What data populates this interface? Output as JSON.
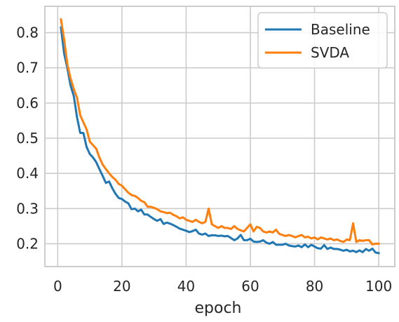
{
  "chart_data": {
    "type": "line",
    "xlabel": "epoch",
    "ylabel": "",
    "xlim": [
      -4,
      105
    ],
    "ylim": [
      0.135,
      0.875
    ],
    "xticks": [
      0,
      20,
      40,
      60,
      80,
      100
    ],
    "yticks": [
      0.2,
      0.3,
      0.4,
      0.5,
      0.6,
      0.7,
      0.8
    ],
    "xtick_labels": [
      "0",
      "20",
      "40",
      "60",
      "80",
      "100"
    ],
    "ytick_labels": [
      "0.2",
      "0.3",
      "0.4",
      "0.5",
      "0.6",
      "0.7",
      "0.8"
    ],
    "grid": true,
    "legend_position": "top-right",
    "series": [
      {
        "name": "Baseline",
        "color": "#1f77b4",
        "x": [
          1,
          2,
          3,
          4,
          5,
          6,
          7,
          8,
          9,
          10,
          11,
          12,
          13,
          14,
          15,
          16,
          17,
          18,
          19,
          20,
          21,
          22,
          23,
          24,
          25,
          26,
          27,
          28,
          29,
          30,
          31,
          32,
          33,
          34,
          35,
          36,
          37,
          38,
          39,
          40,
          41,
          42,
          43,
          44,
          45,
          46,
          47,
          48,
          49,
          50,
          51,
          52,
          53,
          54,
          55,
          56,
          57,
          58,
          59,
          60,
          61,
          62,
          63,
          64,
          65,
          66,
          67,
          68,
          69,
          70,
          71,
          72,
          73,
          74,
          75,
          76,
          77,
          78,
          79,
          80,
          81,
          82,
          83,
          84,
          85,
          86,
          87,
          88,
          89,
          90,
          91,
          92,
          93,
          94,
          95,
          96,
          97,
          98,
          99,
          100
        ],
        "values": [
          0.815,
          0.74,
          0.7,
          0.65,
          0.62,
          0.56,
          0.515,
          0.515,
          0.475,
          0.455,
          0.445,
          0.432,
          0.412,
          0.393,
          0.373,
          0.377,
          0.358,
          0.342,
          0.33,
          0.327,
          0.32,
          0.315,
          0.298,
          0.3,
          0.292,
          0.297,
          0.283,
          0.283,
          0.276,
          0.27,
          0.265,
          0.27,
          0.256,
          0.26,
          0.257,
          0.253,
          0.248,
          0.243,
          0.24,
          0.237,
          0.233,
          0.236,
          0.24,
          0.229,
          0.226,
          0.229,
          0.222,
          0.224,
          0.224,
          0.222,
          0.223,
          0.221,
          0.222,
          0.216,
          0.21,
          0.215,
          0.225,
          0.21,
          0.21,
          0.214,
          0.206,
          0.205,
          0.206,
          0.21,
          0.203,
          0.2,
          0.205,
          0.197,
          0.197,
          0.197,
          0.2,
          0.195,
          0.193,
          0.192,
          0.195,
          0.19,
          0.198,
          0.19,
          0.197,
          0.192,
          0.187,
          0.186,
          0.196,
          0.185,
          0.189,
          0.185,
          0.185,
          0.183,
          0.18,
          0.183,
          0.178,
          0.18,
          0.176,
          0.181,
          0.176,
          0.185,
          0.18,
          0.186,
          0.175,
          0.173
        ]
      },
      {
        "name": "SVDA",
        "color": "#ff7f0e",
        "x": [
          1,
          2,
          3,
          4,
          5,
          6,
          7,
          8,
          9,
          10,
          11,
          12,
          13,
          14,
          15,
          16,
          17,
          18,
          19,
          20,
          21,
          22,
          23,
          24,
          25,
          26,
          27,
          28,
          29,
          30,
          31,
          32,
          33,
          34,
          35,
          36,
          37,
          38,
          39,
          40,
          41,
          42,
          43,
          44,
          45,
          46,
          47,
          48,
          49,
          50,
          51,
          52,
          53,
          54,
          55,
          56,
          57,
          58,
          59,
          60,
          61,
          62,
          63,
          64,
          65,
          66,
          67,
          68,
          69,
          70,
          71,
          72,
          73,
          74,
          75,
          76,
          77,
          78,
          79,
          80,
          81,
          82,
          83,
          84,
          85,
          86,
          87,
          88,
          89,
          90,
          91,
          92,
          93,
          94,
          95,
          96,
          97,
          98,
          99,
          100
        ],
        "values": [
          0.838,
          0.78,
          0.71,
          0.67,
          0.64,
          0.615,
          0.565,
          0.545,
          0.525,
          0.49,
          0.48,
          0.47,
          0.445,
          0.425,
          0.412,
          0.4,
          0.39,
          0.382,
          0.37,
          0.365,
          0.355,
          0.345,
          0.338,
          0.336,
          0.33,
          0.322,
          0.318,
          0.305,
          0.305,
          0.302,
          0.298,
          0.292,
          0.29,
          0.287,
          0.288,
          0.282,
          0.278,
          0.272,
          0.275,
          0.268,
          0.265,
          0.262,
          0.268,
          0.262,
          0.258,
          0.262,
          0.3,
          0.255,
          0.25,
          0.245,
          0.25,
          0.245,
          0.245,
          0.242,
          0.25,
          0.242,
          0.238,
          0.235,
          0.245,
          0.255,
          0.235,
          0.248,
          0.245,
          0.235,
          0.232,
          0.235,
          0.232,
          0.24,
          0.228,
          0.225,
          0.222,
          0.225,
          0.222,
          0.218,
          0.222,
          0.225,
          0.218,
          0.22,
          0.215,
          0.218,
          0.212,
          0.218,
          0.215,
          0.212,
          0.215,
          0.21,
          0.212,
          0.208,
          0.205,
          0.212,
          0.21,
          0.258,
          0.205,
          0.21,
          0.208,
          0.21,
          0.21,
          0.198,
          0.2,
          0.2
        ]
      }
    ]
  }
}
